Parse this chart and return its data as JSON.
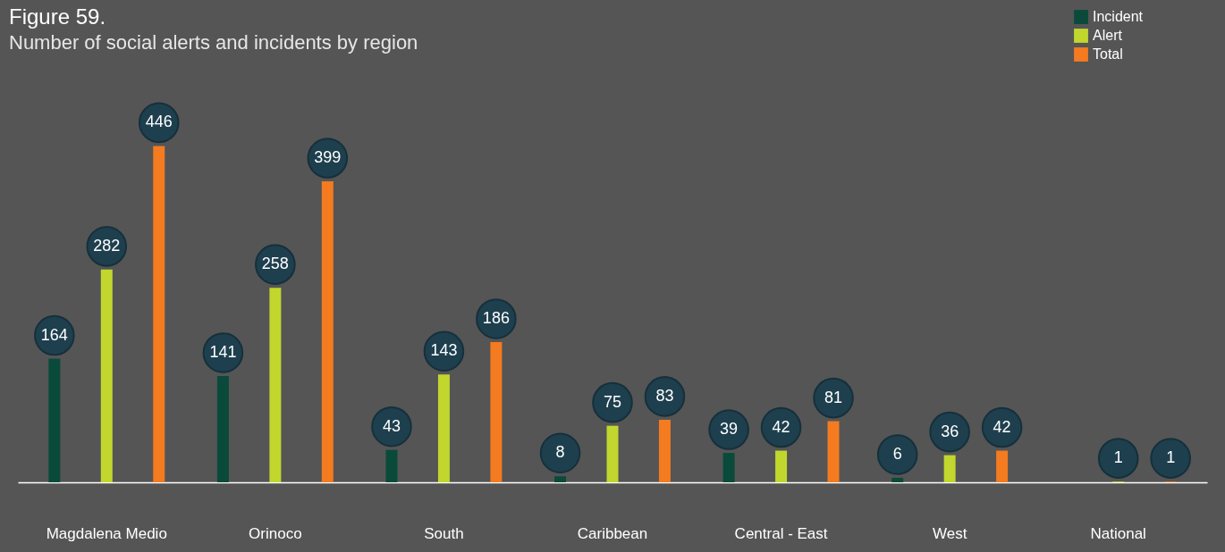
{
  "chart_data": {
    "type": "bar",
    "title": "Figure 59.",
    "subtitle": "Number of social alerts and incidents by region",
    "categories": [
      "Magdalena Medio",
      "Orinoco",
      "South",
      "Caribbean",
      "Central - East",
      "West",
      "National"
    ],
    "series": [
      {
        "name": "Incident",
        "color": "#0a4a3b",
        "values": [
          164,
          141,
          43,
          8,
          39,
          6,
          null
        ]
      },
      {
        "name": "Alert",
        "color": "#c1d72e",
        "values": [
          282,
          258,
          143,
          75,
          42,
          36,
          1
        ]
      },
      {
        "name": "Total",
        "color": "#f47b20",
        "values": [
          446,
          399,
          186,
          83,
          81,
          42,
          1
        ]
      }
    ],
    "data_labels": true,
    "legend": "top right",
    "grid": false
  }
}
